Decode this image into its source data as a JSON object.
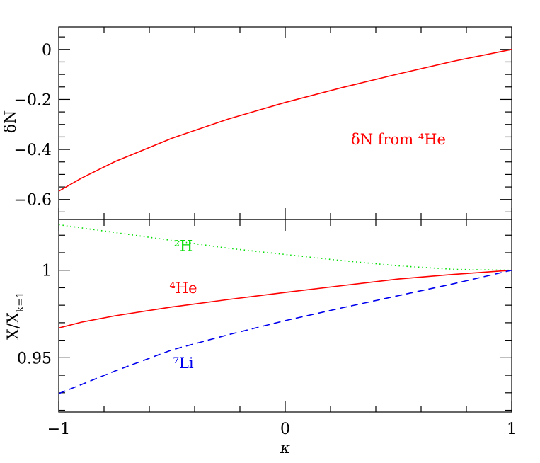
{
  "chart_data": [
    {
      "type": "line",
      "ylabel": "δN",
      "xlim": [
        -1,
        1
      ],
      "ylim": [
        -0.68,
        0.09
      ],
      "x_ticks_major": [
        -1,
        0,
        1
      ],
      "y_ticks": [
        0,
        -0.2,
        -0.4,
        -0.6
      ],
      "y_tick_labels": [
        "0",
        "−0.2",
        "−0.4",
        "−0.6"
      ],
      "grid": false,
      "annotations": [
        {
          "text": "δN from ⁴He",
          "color": "#ff0000",
          "x": 0.5,
          "y": -0.38
        }
      ],
      "series": [
        {
          "color": "#ff0000",
          "style": "solid",
          "x": [
            -1,
            -0.9,
            -0.75,
            -0.5,
            -0.25,
            0,
            0.25,
            0.5,
            0.75,
            1
          ],
          "y": [
            -0.567,
            -0.515,
            -0.448,
            -0.355,
            -0.278,
            -0.212,
            -0.153,
            -0.098,
            -0.046,
            0.0
          ]
        }
      ]
    },
    {
      "type": "line",
      "xlabel": "κ",
      "ylabel": "X/X",
      "ylabel_sub": "k=1",
      "xlim": [
        -1,
        1
      ],
      "ylim": [
        0.919,
        1.029
      ],
      "x_ticks_major": [
        -1,
        0,
        1
      ],
      "x_tick_labels": [
        "−1",
        "0",
        "1"
      ],
      "y_ticks": [
        1,
        0.95
      ],
      "y_tick_labels": [
        "1",
        "0.95"
      ],
      "grid": false,
      "annotations": [
        {
          "text": "²H",
          "color": "#00dd00",
          "x": -0.45,
          "y": 1.011
        },
        {
          "text": "⁴He",
          "color": "#ff0000",
          "x": -0.45,
          "y": 0.987
        },
        {
          "text": "⁷Li",
          "color": "#0000ee",
          "x": -0.45,
          "y": 0.944
        }
      ],
      "series": [
        {
          "name": "²H",
          "color": "#00dd00",
          "style": "dotted",
          "x": [
            -1,
            -0.75,
            -0.5,
            -0.25,
            0,
            0.25,
            0.5,
            0.75,
            1
          ],
          "y": [
            1.026,
            1.0215,
            1.017,
            1.0125,
            1.009,
            1.0055,
            1.0025,
            1.0005,
            1.0
          ]
        },
        {
          "name": "⁴He",
          "color": "#ff0000",
          "style": "solid",
          "x": [
            -1,
            -0.9,
            -0.75,
            -0.5,
            -0.25,
            0,
            0.25,
            0.5,
            0.75,
            1
          ],
          "y": [
            0.967,
            0.9703,
            0.974,
            0.979,
            0.9833,
            0.9873,
            0.9912,
            0.995,
            0.9977,
            1.0
          ]
        },
        {
          "name": "⁷Li",
          "color": "#0000ee",
          "style": "dashed",
          "x": [
            -1,
            -0.75,
            -0.5,
            -0.25,
            0,
            0.25,
            0.5,
            0.75,
            1
          ],
          "y": [
            0.9295,
            0.9425,
            0.9545,
            0.9632,
            0.9712,
            0.9785,
            0.9855,
            0.9925,
            1.0
          ]
        }
      ]
    }
  ]
}
